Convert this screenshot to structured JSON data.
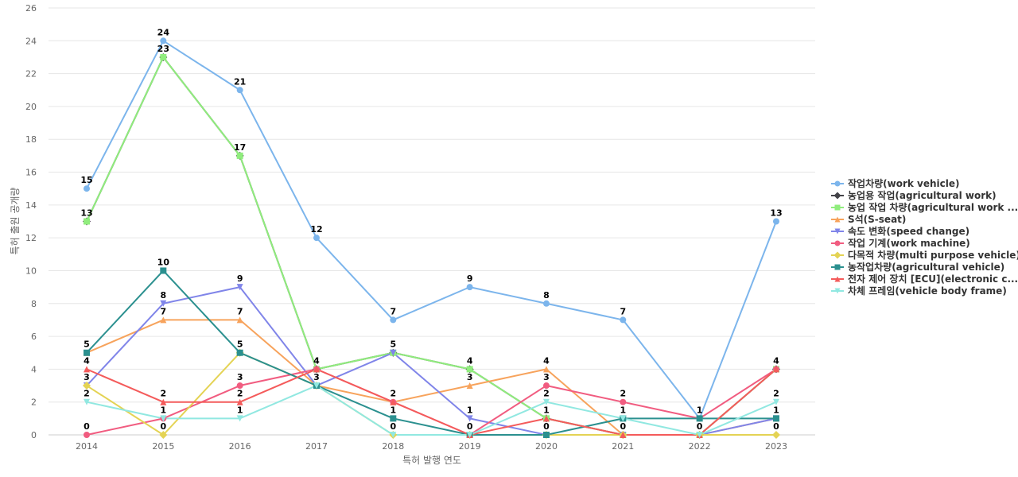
{
  "chart_data": {
    "type": "line",
    "title": "",
    "xlabel": "특허 발행 연도",
    "ylabel": "특허 출원 공개량",
    "ylim": [
      0,
      26
    ],
    "yticks": [
      0,
      2,
      4,
      6,
      8,
      10,
      12,
      14,
      16,
      18,
      20,
      22,
      24,
      26
    ],
    "grid": true,
    "legend_position": "right",
    "categories": [
      "2014",
      "2015",
      "2016",
      "2017",
      "2018",
      "2019",
      "2020",
      "2021",
      "2022",
      "2023"
    ],
    "series": [
      {
        "name": "작업차량(work vehicle)",
        "color": "#7cb5ec",
        "marker": "circle",
        "values": [
          15,
          24,
          21,
          12,
          7,
          9,
          8,
          7,
          1,
          13
        ]
      },
      {
        "name": "농업용 작업(agricultural work)",
        "color": "#434348",
        "marker": "diamond",
        "values": [
          13,
          23,
          17,
          4,
          5,
          4,
          1,
          0,
          0,
          4
        ]
      },
      {
        "name": "농업 작업 차량(agricultural work ...",
        "color": "#90ed7d",
        "marker": "square",
        "values": [
          13,
          23,
          17,
          4,
          5,
          4,
          1,
          0,
          0,
          4
        ]
      },
      {
        "name": "S석(S-seat)",
        "color": "#f7a35c",
        "marker": "triangle",
        "values": [
          5,
          7,
          7,
          3,
          2,
          3,
          4,
          0,
          0,
          1
        ]
      },
      {
        "name": "속도 변화(speed change)",
        "color": "#8085e9",
        "marker": "triangle-down",
        "values": [
          3,
          8,
          9,
          3,
          5,
          1,
          0,
          0,
          0,
          1
        ]
      },
      {
        "name": "작업 기계(work machine)",
        "color": "#f15c80",
        "marker": "circle",
        "values": [
          0,
          1,
          3,
          4,
          2,
          0,
          3,
          2,
          1,
          4
        ]
      },
      {
        "name": "다목적 차량(multi purpose vehicle)",
        "color": "#e4d354",
        "marker": "diamond",
        "values": [
          3,
          0,
          5,
          3,
          0,
          0,
          0,
          0,
          0,
          0
        ]
      },
      {
        "name": "농작업차량(agricultural vehicle)",
        "color": "#2b908f",
        "marker": "square",
        "values": [
          5,
          10,
          5,
          3,
          1,
          0,
          0,
          1,
          1,
          1
        ]
      },
      {
        "name": "전자 제어 장치 [ECU](electronic c...",
        "color": "#f45b5b",
        "marker": "triangle",
        "values": [
          4,
          2,
          2,
          4,
          2,
          0,
          1,
          0,
          0,
          4
        ]
      },
      {
        "name": "차체 프레임(vehicle body frame)",
        "color": "#91e8e1",
        "marker": "triangle-down",
        "values": [
          2,
          1,
          1,
          3,
          0,
          0,
          2,
          1,
          0,
          2
        ]
      }
    ],
    "data_labels": [
      {
        "x": "2014",
        "y": 15,
        "text": "15"
      },
      {
        "x": "2014",
        "y": 13,
        "text": "13"
      },
      {
        "x": "2014",
        "y": 5,
        "text": "5"
      },
      {
        "x": "2014",
        "y": 4,
        "text": "4"
      },
      {
        "x": "2014",
        "y": 3,
        "text": "3"
      },
      {
        "x": "2014",
        "y": 2,
        "text": "2"
      },
      {
        "x": "2014",
        "y": 0,
        "text": "0"
      },
      {
        "x": "2015",
        "y": 24,
        "text": "24"
      },
      {
        "x": "2015",
        "y": 23,
        "text": "23"
      },
      {
        "x": "2015",
        "y": 10,
        "text": "10"
      },
      {
        "x": "2015",
        "y": 8,
        "text": "8"
      },
      {
        "x": "2015",
        "y": 7,
        "text": "7"
      },
      {
        "x": "2015",
        "y": 2,
        "text": "2"
      },
      {
        "x": "2015",
        "y": 1,
        "text": "1"
      },
      {
        "x": "2015",
        "y": 0,
        "text": "0"
      },
      {
        "x": "2016",
        "y": 21,
        "text": "21"
      },
      {
        "x": "2016",
        "y": 17,
        "text": "17"
      },
      {
        "x": "2016",
        "y": 9,
        "text": "9"
      },
      {
        "x": "2016",
        "y": 7,
        "text": "7"
      },
      {
        "x": "2016",
        "y": 5,
        "text": "5"
      },
      {
        "x": "2016",
        "y": 3,
        "text": "3"
      },
      {
        "x": "2016",
        "y": 2,
        "text": "2"
      },
      {
        "x": "2016",
        "y": 1,
        "text": "1"
      },
      {
        "x": "2017",
        "y": 12,
        "text": "12"
      },
      {
        "x": "2017",
        "y": 4,
        "text": "4"
      },
      {
        "x": "2017",
        "y": 3,
        "text": "3"
      },
      {
        "x": "2018",
        "y": 7,
        "text": "7"
      },
      {
        "x": "2018",
        "y": 5,
        "text": "5"
      },
      {
        "x": "2018",
        "y": 2,
        "text": "2"
      },
      {
        "x": "2018",
        "y": 1,
        "text": "1"
      },
      {
        "x": "2018",
        "y": 0,
        "text": "0"
      },
      {
        "x": "2019",
        "y": 9,
        "text": "9"
      },
      {
        "x": "2019",
        "y": 4,
        "text": "4"
      },
      {
        "x": "2019",
        "y": 3,
        "text": "3"
      },
      {
        "x": "2019",
        "y": 1,
        "text": "1"
      },
      {
        "x": "2019",
        "y": 0,
        "text": "0"
      },
      {
        "x": "2020",
        "y": 8,
        "text": "8"
      },
      {
        "x": "2020",
        "y": 4,
        "text": "4"
      },
      {
        "x": "2020",
        "y": 3,
        "text": "3"
      },
      {
        "x": "2020",
        "y": 2,
        "text": "2"
      },
      {
        "x": "2020",
        "y": 1,
        "text": "1"
      },
      {
        "x": "2020",
        "y": 0,
        "text": "0"
      },
      {
        "x": "2021",
        "y": 7,
        "text": "7"
      },
      {
        "x": "2021",
        "y": 2,
        "text": "2"
      },
      {
        "x": "2021",
        "y": 1,
        "text": "1"
      },
      {
        "x": "2021",
        "y": 0,
        "text": "0"
      },
      {
        "x": "2022",
        "y": 1,
        "text": "1"
      },
      {
        "x": "2022",
        "y": 0,
        "text": "0"
      },
      {
        "x": "2023",
        "y": 13,
        "text": "13"
      },
      {
        "x": "2023",
        "y": 4,
        "text": "4"
      },
      {
        "x": "2023",
        "y": 2,
        "text": "2"
      },
      {
        "x": "2023",
        "y": 1,
        "text": "1"
      },
      {
        "x": "2023",
        "y": 0,
        "text": "0"
      }
    ]
  }
}
